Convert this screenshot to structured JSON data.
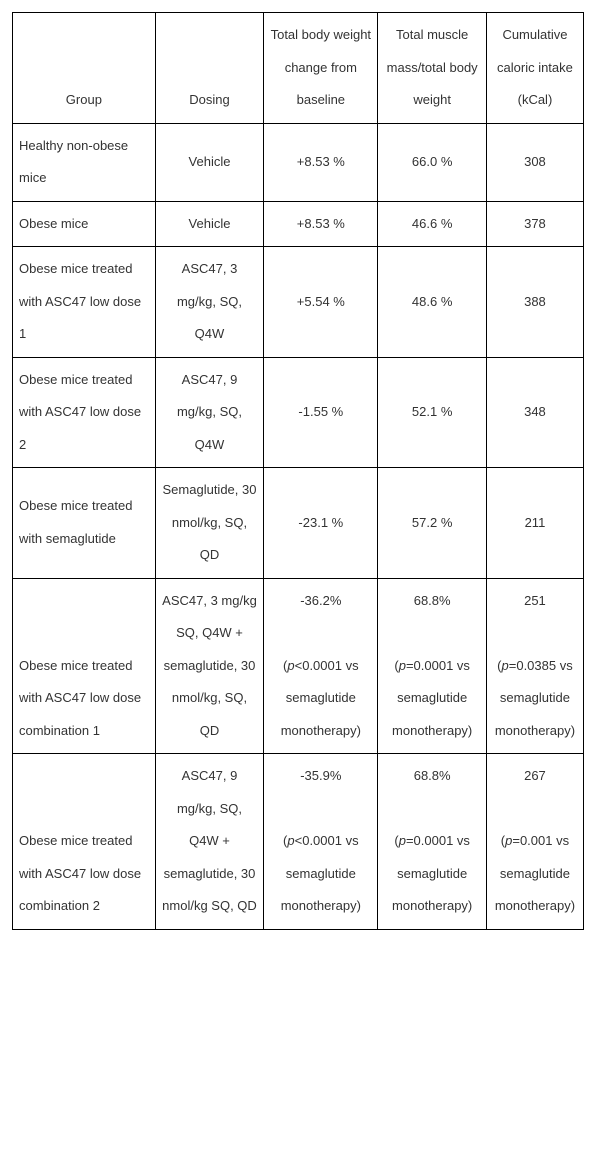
{
  "headers": {
    "group": "Group",
    "dosing": "Dosing",
    "weight": "Total body weight change from baseline",
    "muscle": "Total muscle mass/total body weight",
    "caloric": "Cumulative caloric intake (kCal)"
  },
  "rows": [
    {
      "group": "Healthy non-obese mice",
      "dosing": "Vehicle",
      "weight": "+8.53 %",
      "muscle": "66.0 %",
      "caloric": "308"
    },
    {
      "group": "Obese mice",
      "dosing": "Vehicle",
      "weight": "+8.53 %",
      "muscle": "46.6 %",
      "caloric": "378"
    },
    {
      "group": "Obese mice treated with ASC47 low dose 1",
      "dosing": "ASC47, 3 mg/kg, SQ, Q4W",
      "weight": "+5.54 %",
      "muscle": "48.6 %",
      "caloric": "388"
    },
    {
      "group": "Obese mice treated with ASC47 low dose 2",
      "dosing": "ASC47, 9 mg/kg, SQ, Q4W",
      "weight": "-1.55 %",
      "muscle": "52.1 %",
      "caloric": "348"
    },
    {
      "group": "Obese mice treated with semaglutide",
      "dosing": "Semaglutide, 30 nmol/kg, SQ, QD",
      "weight": "-23.1 %",
      "muscle": "57.2 %",
      "caloric": "211"
    }
  ],
  "combo1": {
    "group": "Obese mice treated with ASC47 low dose combination 1",
    "dosing": "ASC47, 3 mg/kg SQ, Q4W + semaglutide, 30 nmol/kg, SQ, QD",
    "weight_val": "-36.2%",
    "weight_p_pre": "(",
    "weight_p_ital": "p",
    "weight_p_post": "<0.0001 vs semaglutide monotherapy)",
    "muscle_val": "68.8%",
    "muscle_p_pre": "(",
    "muscle_p_ital": "p",
    "muscle_p_post": "=0.0001 vs semaglutide monotherapy)",
    "caloric_val": "251",
    "caloric_p_pre": "(",
    "caloric_p_ital": "p",
    "caloric_p_post": "=0.0385 vs semaglutide monotherapy)"
  },
  "combo2": {
    "group": "Obese mice treated with ASC47 low dose combination 2",
    "dosing": "ASC47, 9 mg/kg, SQ, Q4W + semaglutide, 30 nmol/kg SQ, QD",
    "weight_val": "-35.9%",
    "weight_p_pre": "(",
    "weight_p_ital": "p",
    "weight_p_post": "<0.0001 vs semaglutide monotherapy)",
    "muscle_val": "68.8%",
    "muscle_p_pre": "(",
    "muscle_p_ital": "p",
    "muscle_p_post": "=0.0001 vs semaglutide monotherapy)",
    "caloric_val": "267",
    "caloric_p_pre": "(",
    "caloric_p_ital": "p",
    "caloric_p_post": "=0.001 vs semaglutide monotherapy)"
  }
}
